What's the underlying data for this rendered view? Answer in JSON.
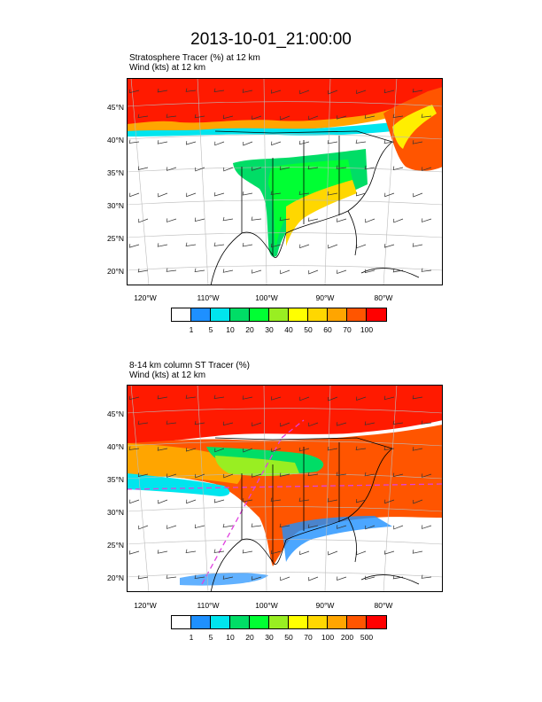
{
  "title": "2013-10-01_21:00:00",
  "panels": [
    {
      "label_line1": "Stratosphere Tracer   (%)     at   12 km",
      "label_line2": "Wind   (kts)     at   12 km",
      "lat_labels": [
        "45°N",
        "40°N",
        "35°N",
        "30°N",
        "25°N",
        "20°N"
      ],
      "lon_labels": [
        "120°W",
        "110°W",
        "100°W",
        "90°W",
        "80°W"
      ],
      "colorbar_labels": [
        "1",
        "5",
        "10",
        "20",
        "30",
        "40",
        "50",
        "60",
        "70",
        "100"
      ],
      "colorbar_colors": [
        "#ffffff",
        "#1e90ff",
        "#00e5ee",
        "#00dd66",
        "#00ff33",
        "#99ee22",
        "#ffff00",
        "#ffd700",
        "#ffa500",
        "#ff5500",
        "#ff0000"
      ]
    },
    {
      "label_line1": "8-14 km column ST Tracer   (%)",
      "label_line2": "Wind   (kts)     at   12 km",
      "lat_labels": [
        "45°N",
        "40°N",
        "35°N",
        "30°N",
        "25°N",
        "20°N"
      ],
      "lon_labels": [
        "120°W",
        "110°W",
        "100°W",
        "90°W",
        "80°W"
      ],
      "colorbar_labels": [
        "1",
        "5",
        "10",
        "20",
        "30",
        "50",
        "70",
        "100",
        "200",
        "500"
      ],
      "colorbar_colors": [
        "#ffffff",
        "#1e90ff",
        "#00e5ee",
        "#00dd66",
        "#00ff33",
        "#99ee22",
        "#ffff00",
        "#ffd700",
        "#ffa500",
        "#ff5500",
        "#ff0000"
      ]
    }
  ]
}
